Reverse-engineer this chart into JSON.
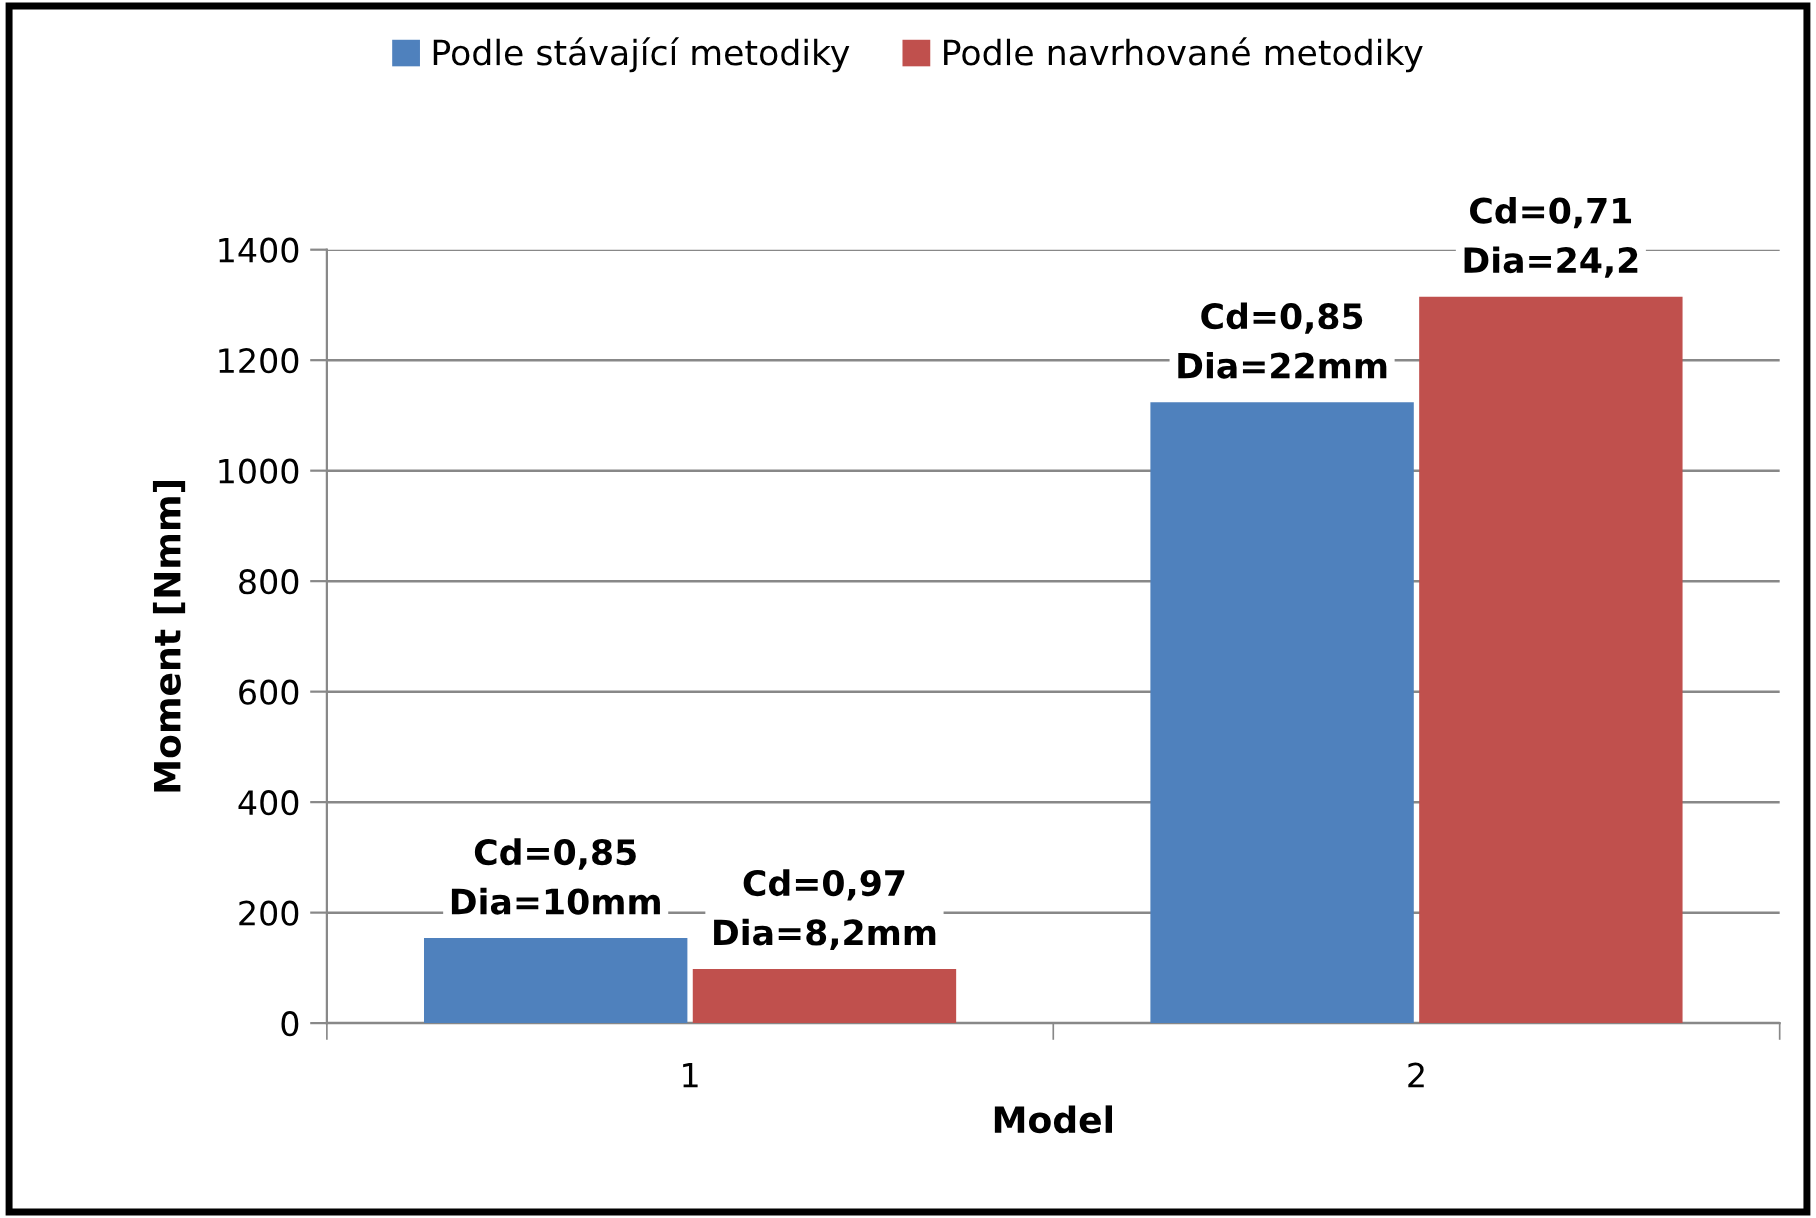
{
  "chart_data": {
    "type": "bar",
    "xlabel": "Model",
    "ylabel": "Moment [Nmm]",
    "categories": [
      "1",
      "2"
    ],
    "series": [
      {
        "name": "Podle stávající metodiky",
        "color": "#4f81bd",
        "values": [
          154,
          1124
        ],
        "value_labels": [
          "Cd=0,85\nDia=10mm",
          "Cd=0,85\nDia=22mm"
        ]
      },
      {
        "name": "Podle navrhované metodiky",
        "color": "#c0504d",
        "values": [
          98,
          1315
        ],
        "value_labels": [
          "Cd=0,97\nDia=8,2mm",
          "Cd=0,71\nDia=24,2"
        ]
      }
    ],
    "ylim": [
      0,
      1400
    ],
    "yticks": [
      0,
      200,
      400,
      600,
      800,
      1000,
      1200,
      1400
    ],
    "grid": "y",
    "legend": "top"
  }
}
